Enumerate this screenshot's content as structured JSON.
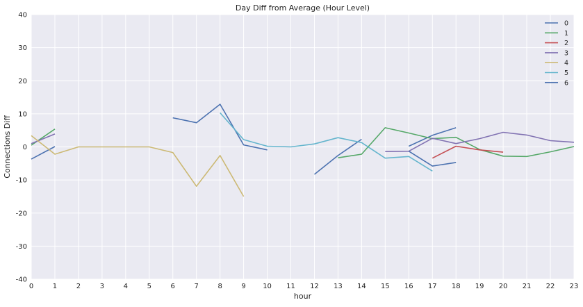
{
  "chart_data": {
    "type": "line",
    "title": "Day Diff from Average (Hour Level)",
    "xlabel": "hour",
    "ylabel": "Connections Diff",
    "xlim": [
      0,
      23
    ],
    "ylim": [
      -40,
      40
    ],
    "x_ticks": [
      0,
      1,
      2,
      3,
      4,
      5,
      6,
      7,
      8,
      9,
      10,
      11,
      12,
      13,
      14,
      15,
      16,
      17,
      18,
      19,
      20,
      21,
      22,
      23
    ],
    "y_ticks": [
      -40,
      -30,
      -20,
      -10,
      0,
      10,
      20,
      30,
      40
    ],
    "grid": true,
    "legend_position": "top-right",
    "series": [
      {
        "name": "0",
        "color": "#4c72b0",
        "segments": [
          [
            [
              0,
              -3.7
            ],
            [
              1,
              0.1
            ]
          ],
          [
            [
              6,
              8.8
            ],
            [
              7,
              7.3
            ],
            [
              8,
              12.9
            ],
            [
              9,
              0.6
            ],
            [
              10,
              -0.9
            ]
          ],
          [
            [
              12,
              -8.3
            ],
            [
              13,
              -2.6
            ],
            [
              14,
              2.3
            ]
          ],
          [
            [
              16,
              0.2
            ],
            [
              17,
              3.5
            ],
            [
              18,
              5.8
            ]
          ]
        ]
      },
      {
        "name": "1",
        "color": "#55a868",
        "segments": [
          [
            [
              0,
              0.5
            ],
            [
              1,
              5.4
            ]
          ],
          [
            [
              13,
              -3.3
            ],
            [
              14,
              -2.2
            ],
            [
              15,
              5.8
            ],
            [
              16,
              4.2
            ],
            [
              17,
              2.5
            ],
            [
              18,
              2.9
            ],
            [
              19,
              -0.8
            ],
            [
              20,
              -2.8
            ],
            [
              21,
              -2.9
            ],
            [
              22,
              -1.5
            ],
            [
              23,
              0.1
            ]
          ]
        ]
      },
      {
        "name": "2",
        "color": "#c44e52",
        "segments": [
          [
            [
              17,
              -3.4
            ],
            [
              18,
              0.2
            ],
            [
              19,
              -0.9
            ],
            [
              20,
              -1.6
            ]
          ]
        ]
      },
      {
        "name": "3",
        "color": "#8172b2",
        "segments": [
          [
            [
              0,
              1.0
            ],
            [
              1,
              3.9
            ]
          ],
          [
            [
              15,
              -1.4
            ],
            [
              16,
              -1.3
            ],
            [
              17,
              2.6
            ],
            [
              18,
              1.0
            ],
            [
              19,
              2.5
            ],
            [
              20,
              4.4
            ],
            [
              21,
              3.6
            ],
            [
              22,
              1.9
            ],
            [
              23,
              1.4
            ]
          ]
        ]
      },
      {
        "name": "4",
        "color": "#ccb974",
        "segments": [
          [
            [
              0,
              3.4
            ],
            [
              1,
              -2.2
            ],
            [
              2,
              0
            ],
            [
              3,
              0
            ],
            [
              4,
              0
            ],
            [
              5,
              0
            ],
            [
              6,
              -1.7
            ],
            [
              7,
              -11.9
            ],
            [
              8,
              -2.6
            ],
            [
              9,
              -15.0
            ]
          ]
        ]
      },
      {
        "name": "5",
        "color": "#64b5cd",
        "segments": [
          [
            [
              8,
              10.3
            ],
            [
              9,
              2.2
            ],
            [
              10,
              0.2
            ],
            [
              11,
              0.0
            ],
            [
              12,
              0.9
            ],
            [
              13,
              2.8
            ],
            [
              14,
              1.3
            ],
            [
              15,
              -3.4
            ],
            [
              16,
              -2.9
            ],
            [
              17,
              -7.3
            ]
          ]
        ]
      },
      {
        "name": "6",
        "color": "#4c72b0",
        "segments": [
          [
            [
              16,
              -1.3
            ],
            [
              17,
              -5.8
            ],
            [
              18,
              -4.7
            ]
          ]
        ]
      }
    ]
  }
}
